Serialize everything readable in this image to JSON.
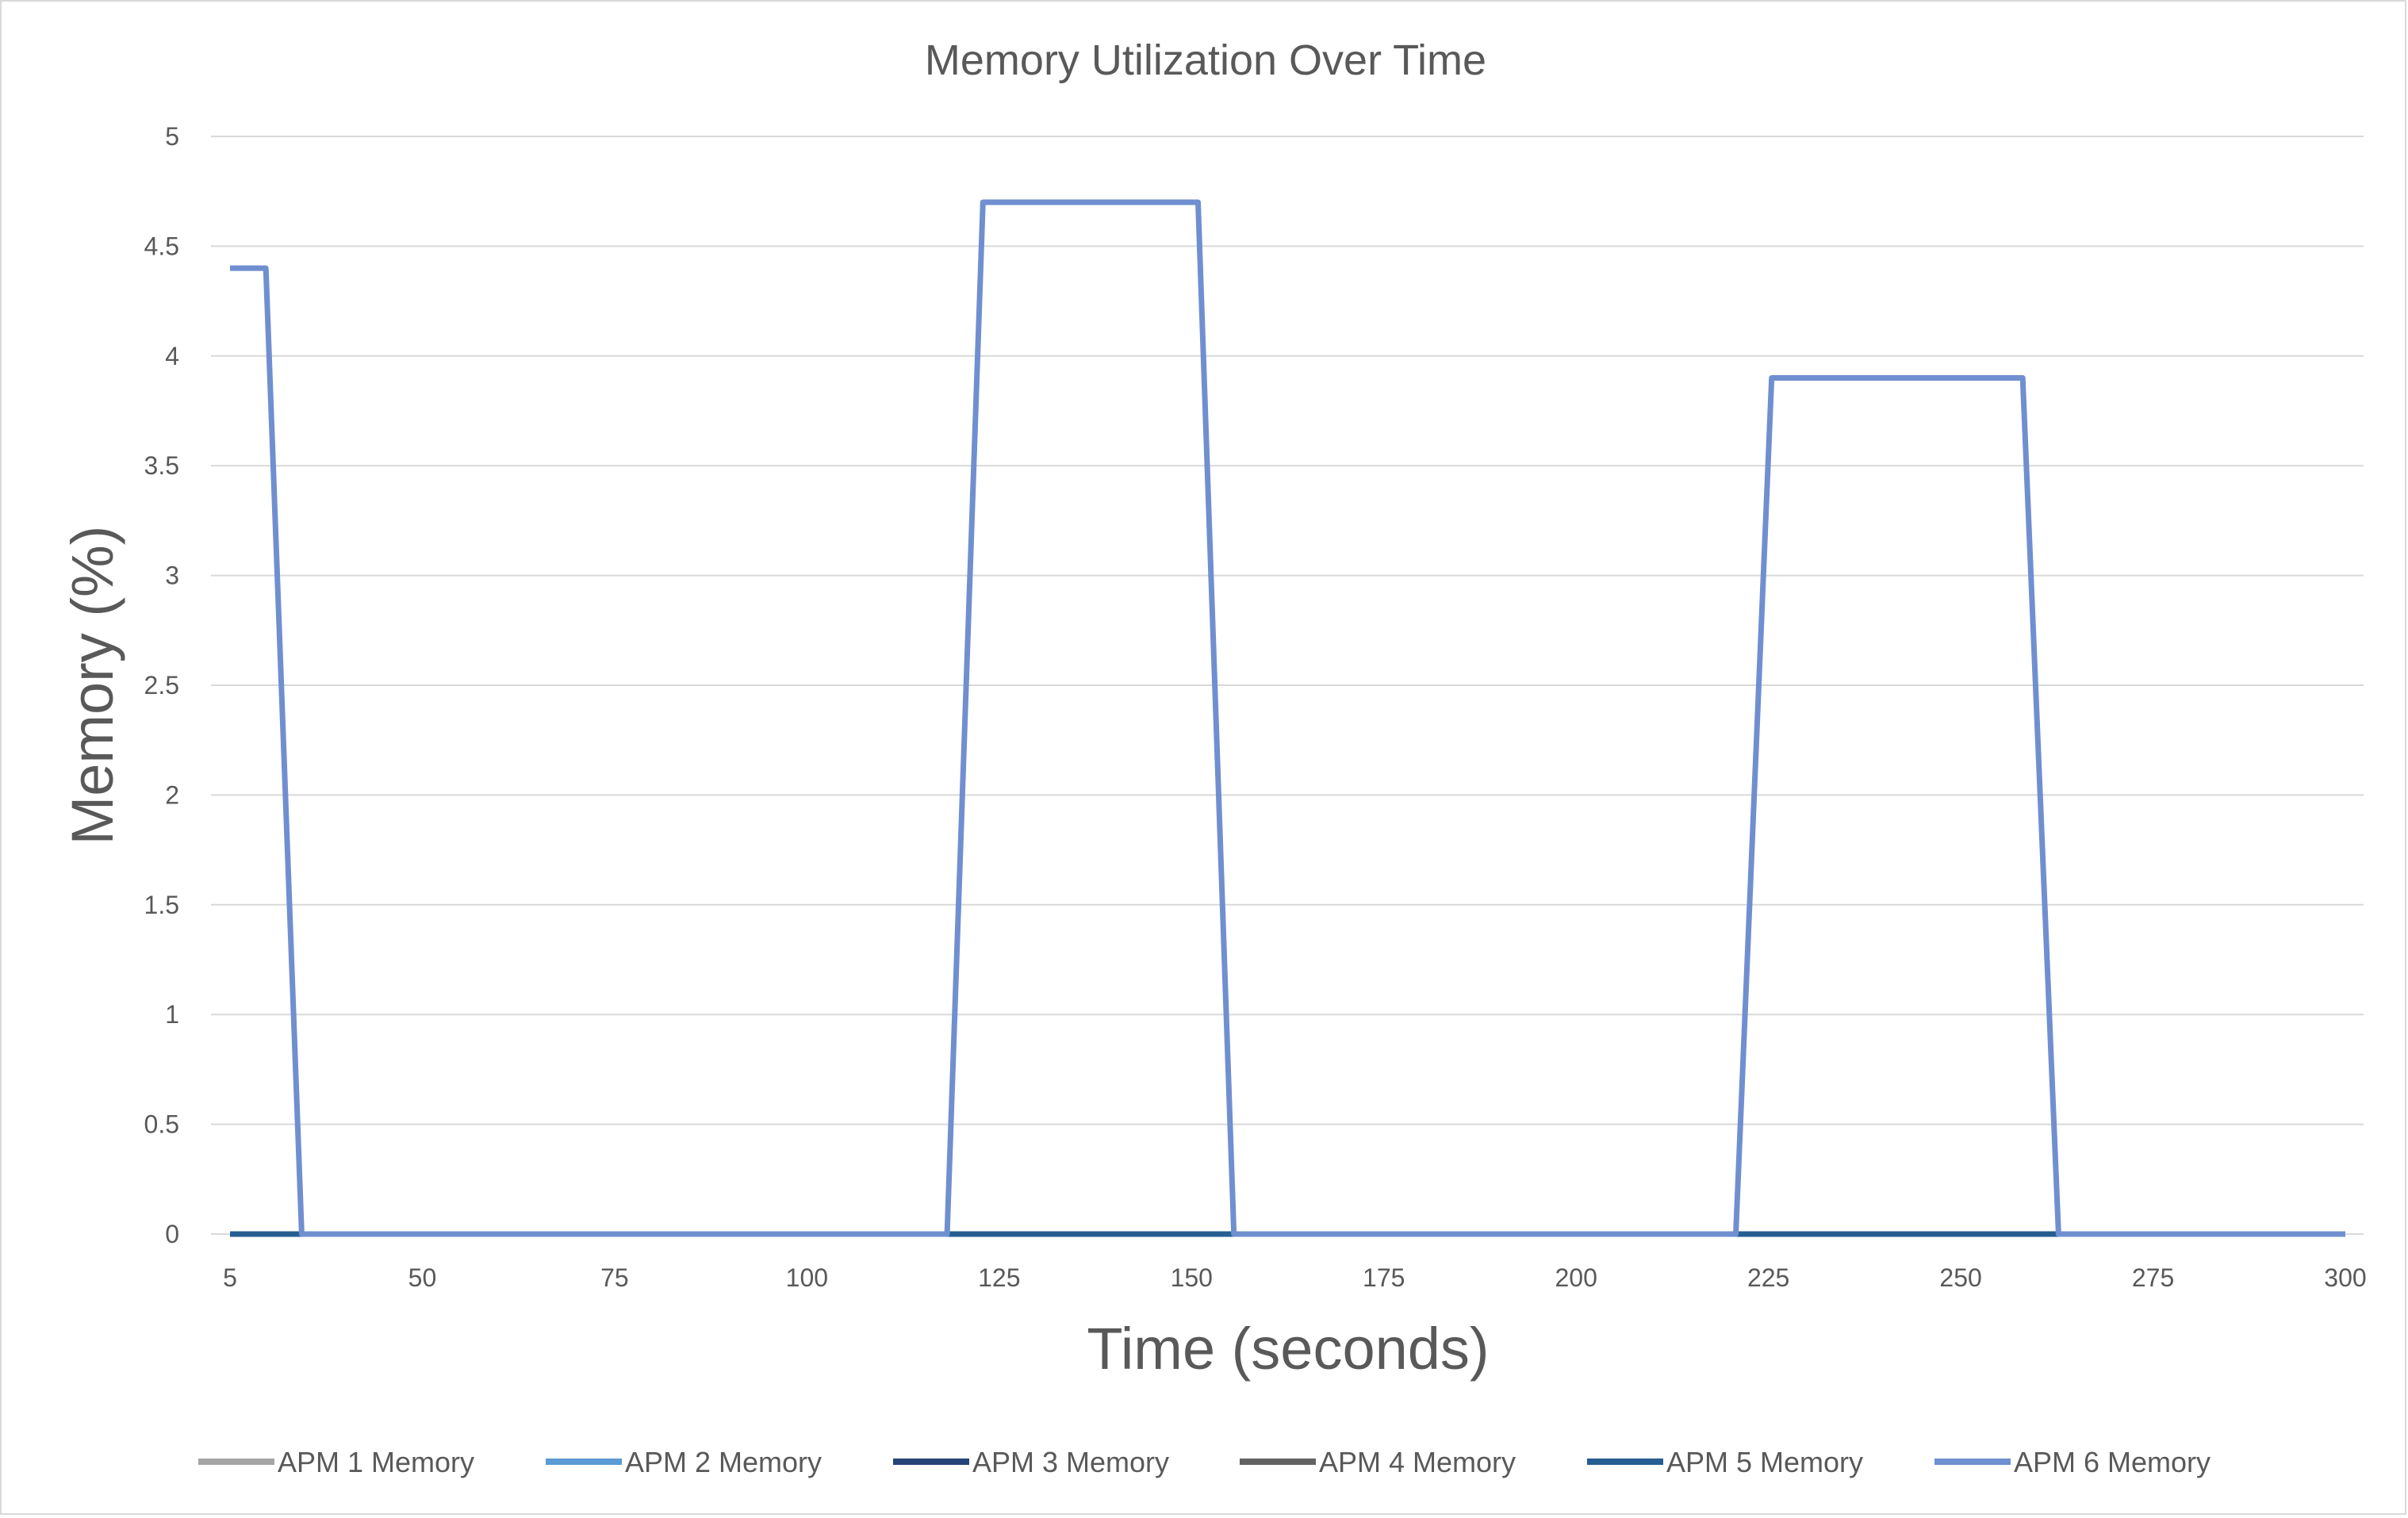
{
  "chart_data": {
    "type": "line",
    "title": "Memory Utilization Over Time",
    "xlabel": "Time (seconds)",
    "ylabel": "Memory  (%)",
    "xlim": [
      5,
      300
    ],
    "ylim": [
      0,
      5
    ],
    "x_ticks": [
      "5",
      "50",
      "75",
      "100",
      "125",
      "150",
      "175",
      "200",
      "225",
      "250",
      "275",
      "300"
    ],
    "y_ticks": [
      "0",
      "0.5",
      "1",
      "1.5",
      "2",
      "2.5",
      "3",
      "3.5",
      "4",
      "4.5",
      "5"
    ],
    "grid": true,
    "legend_position": "bottom",
    "x": [
      5,
      10,
      15,
      105,
      110,
      140,
      145,
      215,
      220,
      255,
      260,
      300
    ],
    "series": [
      {
        "name": "APM 1 Memory",
        "color": "#a5a5a5",
        "values": [
          0,
          0,
          0,
          0,
          0,
          0,
          0,
          0,
          0,
          0,
          0,
          0
        ]
      },
      {
        "name": "APM 2 Memory",
        "color": "#5b9bd5",
        "values": [
          0,
          0,
          0,
          0,
          0,
          0,
          0,
          0,
          0,
          0,
          0,
          0
        ]
      },
      {
        "name": "APM 3 Memory",
        "color": "#264478",
        "values": [
          0,
          0,
          0,
          0,
          0,
          0,
          0,
          0,
          0,
          0,
          0,
          0
        ]
      },
      {
        "name": "APM 4 Memory",
        "color": "#636363",
        "values": [
          0,
          0,
          0,
          0,
          0,
          0,
          0,
          0,
          0,
          0,
          0,
          0
        ]
      },
      {
        "name": "APM 5 Memory",
        "color": "#255e91",
        "values": [
          0,
          0,
          0,
          0,
          0,
          0,
          0,
          0,
          0,
          0,
          0,
          0
        ]
      },
      {
        "name": "APM 6 Memory",
        "color": "#6f8fd0",
        "values": [
          4.4,
          4.4,
          0,
          0,
          4.7,
          4.7,
          0,
          0,
          3.9,
          3.9,
          0,
          0
        ]
      }
    ]
  }
}
